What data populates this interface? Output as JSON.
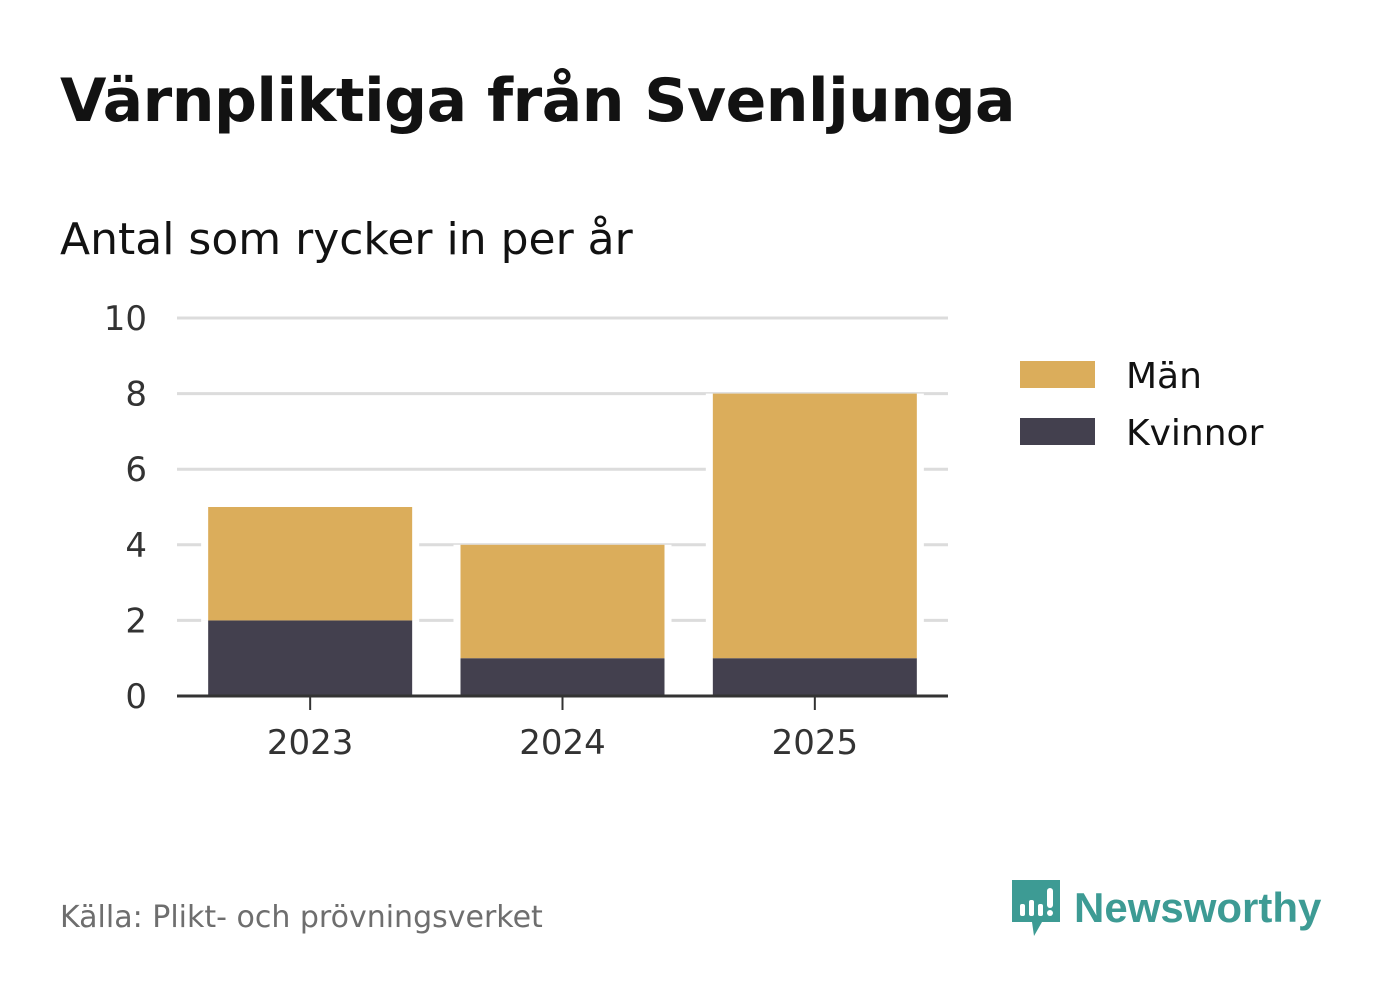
{
  "chart_data": {
    "type": "bar",
    "stacked": true,
    "title": "Värnpliktiga från Svenljunga",
    "subtitle": "Antal som rycker in per år",
    "categories": [
      "2023",
      "2024",
      "2025"
    ],
    "series": [
      {
        "name": "Kvinnor",
        "values": [
          2,
          1,
          1
        ],
        "color": "#43404e"
      },
      {
        "name": "Män",
        "values": [
          3,
          3,
          7
        ],
        "color": "#dbad5b"
      }
    ],
    "legend_order": [
      "Män",
      "Kvinnor"
    ],
    "ylim": [
      0,
      10
    ],
    "yticks": [
      "0",
      "2",
      "4",
      "6",
      "8",
      "10"
    ],
    "grid": true,
    "legend_position": "right",
    "xlabel": "",
    "ylabel": ""
  },
  "source": "Källa: Plikt- och prövningsverket",
  "brand": {
    "name": "Newsworthy",
    "color": "#3d9b94"
  }
}
